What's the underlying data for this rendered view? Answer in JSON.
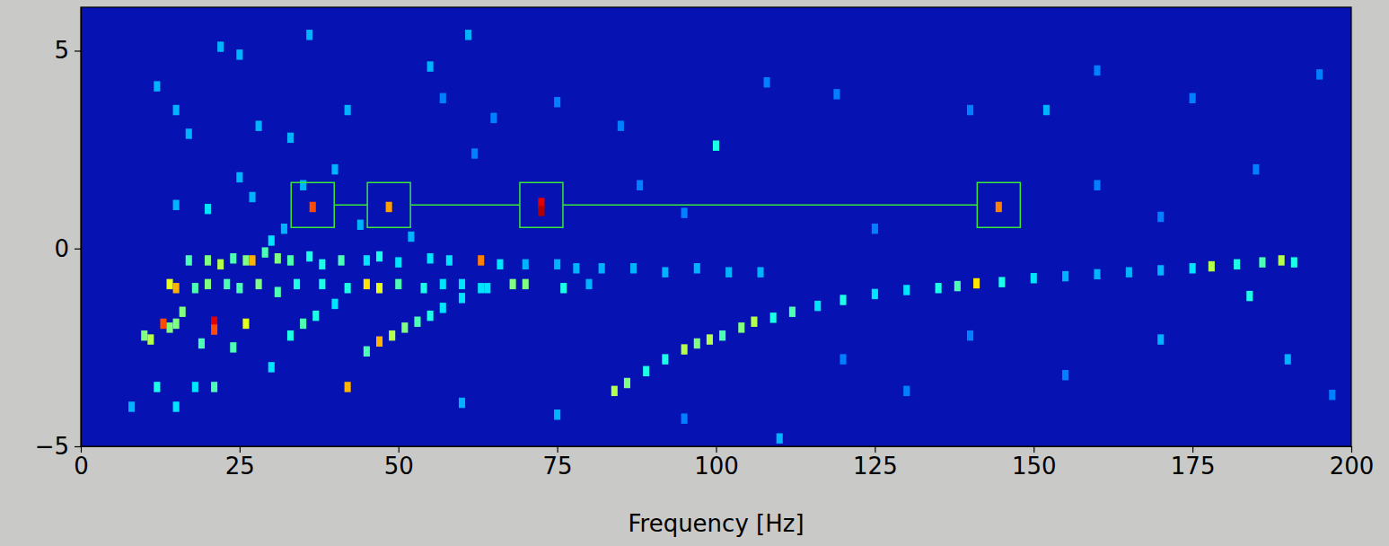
{
  "chart_data": {
    "type": "heatmap",
    "x_label": "Frequency [Hz]",
    "xlim": [
      0,
      200
    ],
    "xticks": [
      0,
      25,
      50,
      75,
      100,
      125,
      150,
      175,
      200
    ],
    "ylim": [
      -5,
      6.1
    ],
    "yticks": [
      {
        "value": -5,
        "label": "−5"
      },
      0,
      5
    ],
    "color_range": [
      0,
      1
    ],
    "cells": [
      {
        "x": 36.5,
        "y": 1.05,
        "value": 0.8
      },
      {
        "x": 48.5,
        "y": 1.05,
        "value": 0.72
      },
      {
        "x": 72.5,
        "y": 1.15,
        "value": 0.9
      },
      {
        "x": 72.5,
        "y": 0.95,
        "value": 0.95
      },
      {
        "x": 144.5,
        "y": 1.05,
        "value": 0.75
      },
      {
        "x": 84,
        "y": -3.6,
        "value": 0.55
      },
      {
        "x": 86,
        "y": -3.4,
        "value": 0.5
      },
      {
        "x": 89,
        "y": -3.1,
        "value": 0.4
      },
      {
        "x": 92,
        "y": -2.8,
        "value": 0.4
      },
      {
        "x": 95,
        "y": -2.55,
        "value": 0.55
      },
      {
        "x": 97,
        "y": -2.4,
        "value": 0.5
      },
      {
        "x": 99,
        "y": -2.3,
        "value": 0.55
      },
      {
        "x": 101,
        "y": -2.2,
        "value": 0.45
      },
      {
        "x": 104,
        "y": -2.0,
        "value": 0.5
      },
      {
        "x": 106,
        "y": -1.85,
        "value": 0.55
      },
      {
        "x": 109,
        "y": -1.75,
        "value": 0.4
      },
      {
        "x": 112,
        "y": -1.6,
        "value": 0.45
      },
      {
        "x": 116,
        "y": -1.45,
        "value": 0.35
      },
      {
        "x": 120,
        "y": -1.3,
        "value": 0.4
      },
      {
        "x": 125,
        "y": -1.15,
        "value": 0.35
      },
      {
        "x": 130,
        "y": -1.05,
        "value": 0.35
      },
      {
        "x": 135,
        "y": -1.0,
        "value": 0.4
      },
      {
        "x": 138,
        "y": -0.95,
        "value": 0.45
      },
      {
        "x": 141,
        "y": -0.88,
        "value": 0.65
      },
      {
        "x": 145,
        "y": -0.85,
        "value": 0.4
      },
      {
        "x": 150,
        "y": -0.75,
        "value": 0.35
      },
      {
        "x": 155,
        "y": -0.7,
        "value": 0.3
      },
      {
        "x": 160,
        "y": -0.65,
        "value": 0.3
      },
      {
        "x": 165,
        "y": -0.6,
        "value": 0.3
      },
      {
        "x": 170,
        "y": -0.55,
        "value": 0.3
      },
      {
        "x": 175,
        "y": -0.5,
        "value": 0.35
      },
      {
        "x": 178,
        "y": -0.45,
        "value": 0.55
      },
      {
        "x": 182,
        "y": -0.4,
        "value": 0.4
      },
      {
        "x": 186,
        "y": -0.35,
        "value": 0.45
      },
      {
        "x": 189,
        "y": -0.3,
        "value": 0.55
      },
      {
        "x": 191,
        "y": -0.35,
        "value": 0.4
      },
      {
        "x": 184,
        "y": -1.2,
        "value": 0.4
      },
      {
        "x": 45,
        "y": -2.6,
        "value": 0.45
      },
      {
        "x": 47,
        "y": -2.35,
        "value": 0.7
      },
      {
        "x": 49,
        "y": -2.2,
        "value": 0.55
      },
      {
        "x": 51,
        "y": -2.0,
        "value": 0.5
      },
      {
        "x": 53,
        "y": -1.85,
        "value": 0.45
      },
      {
        "x": 55,
        "y": -1.7,
        "value": 0.4
      },
      {
        "x": 57,
        "y": -1.5,
        "value": 0.35
      },
      {
        "x": 60,
        "y": -1.25,
        "value": 0.35
      },
      {
        "x": 63,
        "y": -1.0,
        "value": 0.35
      },
      {
        "x": 33,
        "y": -2.2,
        "value": 0.4
      },
      {
        "x": 35,
        "y": -1.9,
        "value": 0.45
      },
      {
        "x": 37,
        "y": -1.7,
        "value": 0.4
      },
      {
        "x": 40,
        "y": -1.4,
        "value": 0.35
      },
      {
        "x": 17,
        "y": -0.3,
        "value": 0.45
      },
      {
        "x": 20,
        "y": -0.3,
        "value": 0.5
      },
      {
        "x": 22,
        "y": -0.4,
        "value": 0.55
      },
      {
        "x": 24,
        "y": -0.25,
        "value": 0.45
      },
      {
        "x": 26,
        "y": -0.3,
        "value": 0.5
      },
      {
        "x": 27,
        "y": -0.3,
        "value": 0.7
      },
      {
        "x": 29,
        "y": -0.1,
        "value": 0.45
      },
      {
        "x": 31,
        "y": -0.25,
        "value": 0.5
      },
      {
        "x": 33,
        "y": -0.3,
        "value": 0.45
      },
      {
        "x": 36,
        "y": -0.2,
        "value": 0.4
      },
      {
        "x": 38,
        "y": -0.4,
        "value": 0.4
      },
      {
        "x": 41,
        "y": -0.3,
        "value": 0.45
      },
      {
        "x": 45,
        "y": -0.3,
        "value": 0.35
      },
      {
        "x": 47,
        "y": -0.2,
        "value": 0.4
      },
      {
        "x": 50,
        "y": -0.35,
        "value": 0.35
      },
      {
        "x": 55,
        "y": -0.25,
        "value": 0.35
      },
      {
        "x": 58,
        "y": -0.3,
        "value": 0.35
      },
      {
        "x": 63,
        "y": -0.3,
        "value": 0.75
      },
      {
        "x": 66,
        "y": -0.4,
        "value": 0.35
      },
      {
        "x": 70,
        "y": -0.4,
        "value": 0.3
      },
      {
        "x": 75,
        "y": -0.4,
        "value": 0.3
      },
      {
        "x": 78,
        "y": -0.5,
        "value": 0.3
      },
      {
        "x": 82,
        "y": -0.5,
        "value": 0.3
      },
      {
        "x": 87,
        "y": -0.5,
        "value": 0.3
      },
      {
        "x": 92,
        "y": -0.6,
        "value": 0.3
      },
      {
        "x": 97,
        "y": -0.5,
        "value": 0.3
      },
      {
        "x": 102,
        "y": -0.6,
        "value": 0.3
      },
      {
        "x": 107,
        "y": -0.6,
        "value": 0.3
      },
      {
        "x": 14,
        "y": -0.9,
        "value": 0.6
      },
      {
        "x": 15,
        "y": -1.0,
        "value": 0.7
      },
      {
        "x": 18,
        "y": -1.0,
        "value": 0.45
      },
      {
        "x": 20,
        "y": -0.9,
        "value": 0.5
      },
      {
        "x": 23,
        "y": -0.9,
        "value": 0.45
      },
      {
        "x": 25,
        "y": -1.0,
        "value": 0.45
      },
      {
        "x": 28,
        "y": -0.9,
        "value": 0.5
      },
      {
        "x": 31,
        "y": -1.1,
        "value": 0.45
      },
      {
        "x": 34,
        "y": -0.9,
        "value": 0.4
      },
      {
        "x": 38,
        "y": -0.9,
        "value": 0.4
      },
      {
        "x": 42,
        "y": -1.0,
        "value": 0.4
      },
      {
        "x": 45,
        "y": -0.9,
        "value": 0.65
      },
      {
        "x": 47,
        "y": -1.0,
        "value": 0.6
      },
      {
        "x": 50,
        "y": -0.9,
        "value": 0.45
      },
      {
        "x": 54,
        "y": -1.0,
        "value": 0.4
      },
      {
        "x": 57,
        "y": -0.9,
        "value": 0.35
      },
      {
        "x": 60,
        "y": -0.9,
        "value": 0.35
      },
      {
        "x": 64,
        "y": -1.0,
        "value": 0.35
      },
      {
        "x": 68,
        "y": -0.9,
        "value": 0.5
      },
      {
        "x": 70,
        "y": -0.9,
        "value": 0.5
      },
      {
        "x": 76,
        "y": -1.0,
        "value": 0.4
      },
      {
        "x": 80,
        "y": -0.9,
        "value": 0.3
      },
      {
        "x": 10,
        "y": -2.2,
        "value": 0.5
      },
      {
        "x": 11,
        "y": -2.3,
        "value": 0.55
      },
      {
        "x": 13,
        "y": -1.9,
        "value": 0.8
      },
      {
        "x": 14,
        "y": -2.0,
        "value": 0.5
      },
      {
        "x": 15,
        "y": -1.9,
        "value": 0.5
      },
      {
        "x": 16,
        "y": -1.6,
        "value": 0.5
      },
      {
        "x": 19,
        "y": -2.4,
        "value": 0.45
      },
      {
        "x": 21,
        "y": -1.85,
        "value": 0.9
      },
      {
        "x": 21,
        "y": -2.05,
        "value": 0.8
      },
      {
        "x": 24,
        "y": -2.5,
        "value": 0.45
      },
      {
        "x": 26,
        "y": -1.9,
        "value": 0.6
      },
      {
        "x": 21,
        "y": -3.5,
        "value": 0.45
      },
      {
        "x": 42,
        "y": -3.5,
        "value": 0.7
      },
      {
        "x": 12,
        "y": -3.5,
        "value": 0.4
      },
      {
        "x": 15,
        "y": -4.0,
        "value": 0.35
      },
      {
        "x": 8,
        "y": -4.0,
        "value": 0.3
      },
      {
        "x": 30,
        "y": -3.0,
        "value": 0.35
      },
      {
        "x": 18,
        "y": -3.5,
        "value": 0.35
      },
      {
        "x": 12,
        "y": 4.1,
        "value": 0.3
      },
      {
        "x": 15,
        "y": 3.5,
        "value": 0.3
      },
      {
        "x": 17,
        "y": 2.9,
        "value": 0.3
      },
      {
        "x": 22,
        "y": 5.1,
        "value": 0.3
      },
      {
        "x": 25,
        "y": 4.9,
        "value": 0.3
      },
      {
        "x": 28,
        "y": 3.1,
        "value": 0.3
      },
      {
        "x": 33,
        "y": 2.8,
        "value": 0.3
      },
      {
        "x": 36,
        "y": 5.4,
        "value": 0.3
      },
      {
        "x": 42,
        "y": 3.5,
        "value": 0.3
      },
      {
        "x": 55,
        "y": 4.6,
        "value": 0.3
      },
      {
        "x": 57,
        "y": 3.8,
        "value": 0.25
      },
      {
        "x": 61,
        "y": 5.4,
        "value": 0.3
      },
      {
        "x": 65,
        "y": 3.3,
        "value": 0.25
      },
      {
        "x": 75,
        "y": 3.7,
        "value": 0.25
      },
      {
        "x": 85,
        "y": 3.1,
        "value": 0.25
      },
      {
        "x": 100,
        "y": 2.6,
        "value": 0.4
      },
      {
        "x": 108,
        "y": 4.2,
        "value": 0.25
      },
      {
        "x": 119,
        "y": 3.9,
        "value": 0.25
      },
      {
        "x": 140,
        "y": 3.5,
        "value": 0.25
      },
      {
        "x": 152,
        "y": 3.5,
        "value": 0.3
      },
      {
        "x": 160,
        "y": 4.5,
        "value": 0.25
      },
      {
        "x": 175,
        "y": 3.8,
        "value": 0.25
      },
      {
        "x": 195,
        "y": 4.4,
        "value": 0.25
      },
      {
        "x": 35,
        "y": 1.6,
        "value": 0.3
      },
      {
        "x": 40,
        "y": 2.0,
        "value": 0.3
      },
      {
        "x": 25,
        "y": 1.8,
        "value": 0.3
      },
      {
        "x": 15,
        "y": 1.1,
        "value": 0.3
      },
      {
        "x": 20,
        "y": 1.0,
        "value": 0.35
      },
      {
        "x": 27,
        "y": 1.3,
        "value": 0.3
      },
      {
        "x": 30,
        "y": 0.2,
        "value": 0.35
      },
      {
        "x": 32,
        "y": 0.5,
        "value": 0.3
      },
      {
        "x": 44,
        "y": 0.6,
        "value": 0.3
      },
      {
        "x": 52,
        "y": 0.3,
        "value": 0.3
      },
      {
        "x": 62,
        "y": 2.4,
        "value": 0.25
      },
      {
        "x": 88,
        "y": 1.6,
        "value": 0.25
      },
      {
        "x": 95,
        "y": 0.9,
        "value": 0.25
      },
      {
        "x": 125,
        "y": 0.5,
        "value": 0.25
      },
      {
        "x": 160,
        "y": 1.6,
        "value": 0.25
      },
      {
        "x": 170,
        "y": 0.8,
        "value": 0.25
      },
      {
        "x": 185,
        "y": 2.0,
        "value": 0.25
      },
      {
        "x": 60,
        "y": -3.9,
        "value": 0.3
      },
      {
        "x": 75,
        "y": -4.2,
        "value": 0.3
      },
      {
        "x": 95,
        "y": -4.3,
        "value": 0.25
      },
      {
        "x": 110,
        "y": -4.8,
        "value": 0.3
      },
      {
        "x": 130,
        "y": -3.6,
        "value": 0.25
      },
      {
        "x": 155,
        "y": -3.2,
        "value": 0.25
      },
      {
        "x": 170,
        "y": -2.3,
        "value": 0.3
      },
      {
        "x": 190,
        "y": -2.8,
        "value": 0.3
      },
      {
        "x": 197,
        "y": -3.7,
        "value": 0.25
      },
      {
        "x": 120,
        "y": -2.8,
        "value": 0.25
      },
      {
        "x": 140,
        "y": -2.2,
        "value": 0.25
      }
    ],
    "annotations": {
      "x": [
        36.5,
        48.5,
        72.5,
        144.5
      ],
      "y": [
        1.1,
        1.1,
        1.1,
        1.1
      ],
      "color": "#39e639"
    }
  }
}
